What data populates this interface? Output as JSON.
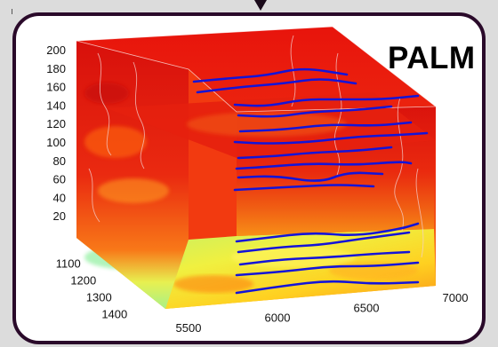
{
  "badge": "PALM",
  "chart_data": {
    "type": "3d-volume-slice",
    "axes": {
      "z": {
        "ticks": [
          20,
          40,
          60,
          80,
          100,
          120,
          140,
          160,
          180,
          200
        ],
        "range": [
          0,
          200
        ]
      },
      "y": {
        "ticks": [
          1100,
          1200,
          1300,
          1400
        ],
        "range": [
          1050,
          1450
        ]
      },
      "x": {
        "ticks": [
          5500,
          6000,
          6500,
          7000
        ],
        "range": [
          5500,
          7000
        ]
      }
    },
    "colormap": [
      "#ff0000",
      "#ff4000",
      "#ff8000",
      "#ffbf00",
      "#ffff00",
      "#bfff60",
      "#7fff9f"
    ],
    "trajectory_color": "#1414d8",
    "grid": false
  }
}
